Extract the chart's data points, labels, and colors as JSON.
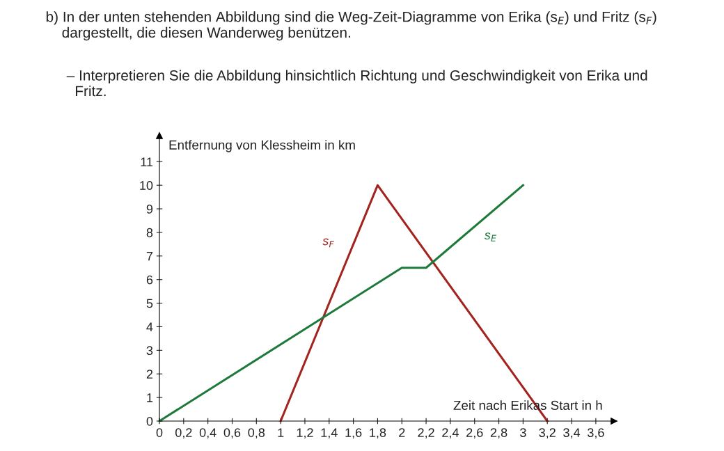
{
  "chart_data": {
    "type": "line",
    "title": "b) In der unten stehenden Abbildung sind die Weg-Zeit-Diagramme von Erika (s$_{E}$) und Fritz (s$_{F}$)\n    dargestellt, die diesen Wanderweg benützen.",
    "subtitle": "– Interpretieren Sie die Abbildung hinsichtlich Richtung und Geschwindigkeit von Erika und\n  Fritz.",
    "xlabel": "Zeit nach Erikas Start in h",
    "ylabel": "Entfernung von Klessheim in km",
    "series": [
      {
        "name": "s$_{F}$",
        "color": "#a3231f",
        "x": [
          1,
          1.8,
          3.2
        ],
        "values": [
          0,
          10,
          0
        ]
      },
      {
        "name": "s$_{E}$",
        "color": "#1d7a3a",
        "x": [
          0,
          2,
          2.2,
          3
        ],
        "values": [
          0,
          6.5,
          6.5,
          10
        ]
      }
    ],
    "xlim": [
      0,
      3.75
    ],
    "ylim": [
      0,
      12.1
    ],
    "xticks": [
      0,
      {
        "value": 0.2,
        "label": "0,2"
      },
      {
        "value": 0.4,
        "label": "0,4"
      },
      {
        "value": 0.6,
        "label": "0,6"
      },
      {
        "value": 0.8,
        "label": "0,8"
      },
      1,
      {
        "value": 1.2,
        "label": "1,2"
      },
      {
        "value": 1.4,
        "label": "1,4"
      },
      {
        "value": 1.6,
        "label": "1,6"
      },
      {
        "value": 1.8,
        "label": "1,8"
      },
      2,
      {
        "value": 2.2,
        "label": "2,2"
      },
      {
        "value": 2.4,
        "label": "2,4"
      },
      {
        "value": 2.6,
        "label": "2,6"
      },
      {
        "value": 2.8,
        "label": "2,8"
      },
      3,
      {
        "value": 3.2,
        "label": "3,2"
      },
      {
        "value": 3.4,
        "label": "3,4"
      },
      {
        "value": 3.6,
        "label": "3,6"
      }
    ],
    "yticks": [
      0,
      1,
      2,
      3,
      4,
      5,
      6,
      7,
      8,
      9,
      10,
      11
    ],
    "grid": false,
    "legend": false,
    "marker": "none",
    "line_style": "solid"
  }
}
